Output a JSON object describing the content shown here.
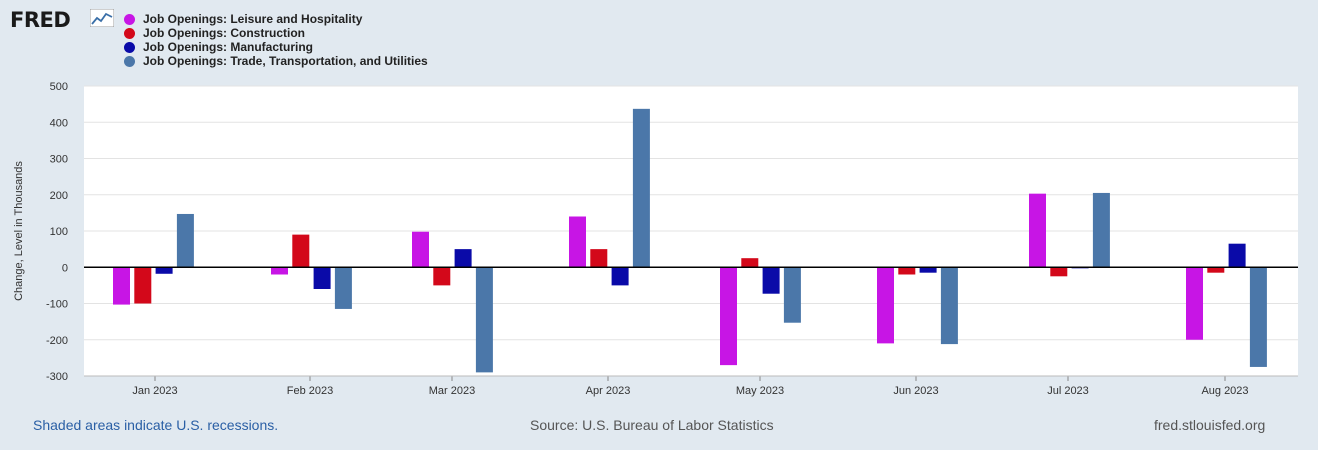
{
  "logo": {
    "text": "FRED"
  },
  "chart_data": {
    "type": "bar",
    "title": "",
    "xlabel": "",
    "ylabel": "Change, Level in Thousands",
    "ylim": [
      -300,
      500
    ],
    "yticks": [
      500,
      400,
      300,
      200,
      100,
      0,
      -100,
      -200,
      -300
    ],
    "ytick_labels": [
      "500",
      "400",
      "300",
      "200",
      "100",
      "0",
      "-100",
      "-200",
      "-300"
    ],
    "grid": true,
    "legend_position": "top-left",
    "categories": [
      "Jan 2023",
      "Feb 2023",
      "Mar 2023",
      "Apr 2023",
      "May 2023",
      "Jun 2023",
      "Jul 2023",
      "Aug 2023"
    ],
    "series": [
      {
        "name": "Job Openings: Leisure and Hospitality",
        "color": "#c715e5",
        "values": [
          -103,
          -20,
          98,
          140,
          -270,
          -210,
          203,
          -200
        ]
      },
      {
        "name": "Job Openings: Construction",
        "color": "#d3081a",
        "values": [
          -100,
          90,
          -50,
          50,
          25,
          -20,
          -25,
          -15
        ]
      },
      {
        "name": "Job Openings: Manufacturing",
        "color": "#0a0aa8",
        "values": [
          -18,
          -60,
          50,
          -50,
          -73,
          -15,
          -3,
          65
        ]
      },
      {
        "name": "Job Openings: Trade, Transportation, and Utilities",
        "color": "#4b77a9",
        "values": [
          147,
          -115,
          -290,
          437,
          -153,
          -212,
          205,
          -275
        ]
      }
    ]
  },
  "footer": {
    "recessions": "Shaded areas indicate U.S. recessions.",
    "source": "Source: U.S. Bureau of Labor Statistics",
    "site": "fred.stlouisfed.org"
  }
}
